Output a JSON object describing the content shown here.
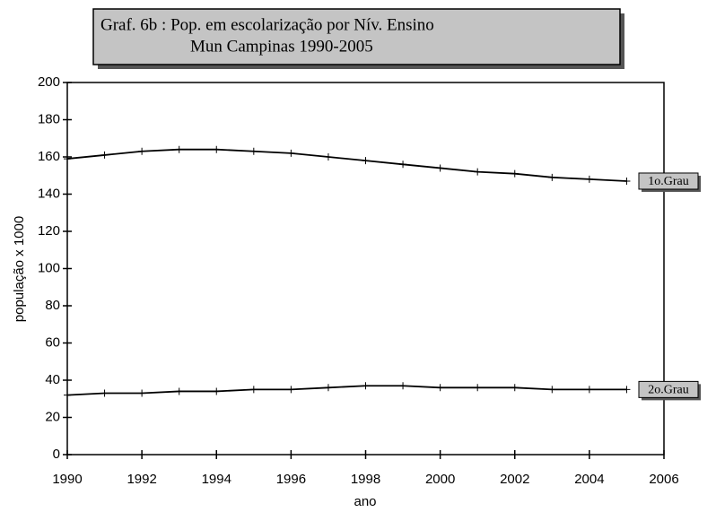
{
  "chart_data": {
    "type": "line",
    "title": [
      "Graf. 6b : Pop. em escolarização por Nív. Ensino",
      "Mun Campinas 1990-2005"
    ],
    "x_label": "ano",
    "y_label": "população x 1000",
    "x": [
      1990,
      1991,
      1992,
      1993,
      1994,
      1995,
      1996,
      1997,
      1998,
      1999,
      2000,
      2001,
      2002,
      2003,
      2004,
      2005
    ],
    "series": [
      {
        "name": "1o.Grau",
        "color": "#000000",
        "values": [
          159,
          161,
          163,
          164,
          164,
          163,
          162,
          160,
          158,
          156,
          154,
          152,
          151,
          149,
          148,
          147
        ]
      },
      {
        "name": "2o.Grau",
        "color": "#000000",
        "values": [
          32,
          33,
          33,
          34,
          34,
          35,
          35,
          36,
          37,
          37,
          36,
          36,
          36,
          35,
          35,
          35
        ]
      }
    ],
    "xlim": [
      1990,
      2006
    ],
    "xticks": [
      1990,
      1992,
      1994,
      1996,
      1998,
      2000,
      2002,
      2004,
      2006
    ],
    "ylim": [
      0,
      200
    ],
    "yticks": [
      0,
      20,
      40,
      60,
      80,
      100,
      120,
      140,
      160,
      180,
      200
    ],
    "grid": false
  }
}
